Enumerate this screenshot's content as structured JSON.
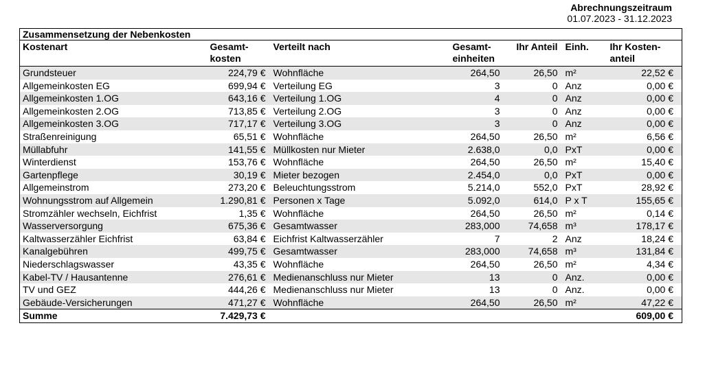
{
  "header": {
    "period_label": "Abrechnungszeitraum",
    "period_value": "01.07.2023 - 31.12.2023"
  },
  "table": {
    "title": "Zusammensetzung der Nebenkosten",
    "headers": [
      {
        "line1": "Kostenart",
        "line2": ""
      },
      {
        "line1": "Gesamt-",
        "line2": "kosten"
      },
      {
        "line1": "Verteilt nach",
        "line2": ""
      },
      {
        "line1": "Gesamt-",
        "line2": "einheiten"
      },
      {
        "line1": "Ihr Anteil",
        "line2": ""
      },
      {
        "line1": "Einh.",
        "line2": ""
      },
      {
        "line1": "Ihr Kosten-",
        "line2": "anteil"
      }
    ],
    "rows": [
      [
        "Grundsteuer",
        "224,79 €",
        "Wohnfläche",
        "264,50",
        "26,50",
        "m²",
        "22,52 €"
      ],
      [
        "Allgemeinkosten EG",
        "699,94 €",
        "Verteilung EG",
        "3",
        "0",
        "Anz",
        "0,00 €"
      ],
      [
        "Allgemeinkosten 1.OG",
        "643,16 €",
        "Verteilung 1.OG",
        "4",
        "0",
        "Anz",
        "0,00 €"
      ],
      [
        "Allgemeinkosten 2.OG",
        "713,85 €",
        "Verteilung 2.OG",
        "3",
        "0",
        "Anz",
        "0,00 €"
      ],
      [
        "Allgemeinkosten 3.OG",
        "717,17 €",
        "Verteilung 3.OG",
        "3",
        "0",
        "Anz",
        "0,00 €"
      ],
      [
        "Straßenreinigung",
        "65,51 €",
        "Wohnfläche",
        "264,50",
        "26,50",
        "m²",
        "6,56 €"
      ],
      [
        "Müllabfuhr",
        "141,55 €",
        "Müllkosten nur Mieter",
        "2.638,0",
        "0,0",
        "PxT",
        "0,00 €"
      ],
      [
        "Winterdienst",
        "153,76 €",
        "Wohnfläche",
        "264,50",
        "26,50",
        "m²",
        "15,40 €"
      ],
      [
        "Gartenpflege",
        "30,19 €",
        "Mieter bezogen",
        "2.454,0",
        "0,0",
        "PxT",
        "0,00 €"
      ],
      [
        "Allgemeinstrom",
        "273,20 €",
        "Beleuchtungsstrom",
        "5.214,0",
        "552,0",
        "PxT",
        "28,92 €"
      ],
      [
        "Wohnungsstrom auf Allgemein",
        "1.290,81 €",
        "Personen x Tage",
        "5.092,0",
        "614,0",
        "P x T",
        "155,65 €"
      ],
      [
        "Stromzähler wechseln, Eichfrist",
        "1,35 €",
        "Wohnfläche",
        "264,50",
        "26,50",
        "m²",
        "0,14 €"
      ],
      [
        "Wasserversorgung",
        "675,36 €",
        "Gesamtwasser",
        "283,000",
        "74,658",
        "m³",
        "178,17 €"
      ],
      [
        "Kaltwasserzähler Eichfrist",
        "63,84 €",
        "Eichfrist Kaltwasserzähler",
        "7",
        "2",
        "Anz",
        "18,24 €"
      ],
      [
        "Kanalgebühren",
        "499,75 €",
        "Gesamtwasser",
        "283,000",
        "74,658",
        "m³",
        "131,84 €"
      ],
      [
        "Niederschlagswasser",
        "43,35 €",
        "Wohnfläche",
        "264,50",
        "26,50",
        "m²",
        "4,34 €"
      ],
      [
        "Kabel-TV / Hausantenne",
        "276,61 €",
        "Medienanschluss nur Mieter",
        "13",
        "0",
        "Anz.",
        "0,00 €"
      ],
      [
        "TV und GEZ",
        "444,26 €",
        "Medienanschluss nur Mieter",
        "13",
        "0",
        "Anz.",
        "0,00 €"
      ],
      [
        "Gebäude-Versicherungen",
        "471,27 €",
        "Wohnfläche",
        "264,50",
        "26,50",
        "m²",
        "47,22 €"
      ]
    ],
    "summe": {
      "label": "Summe",
      "gesamtkosten": "7.429,73 €",
      "kostenanteil": "609,00 €"
    }
  },
  "colors": {
    "row_shade": "#e6e6e6",
    "border": "#000000"
  }
}
